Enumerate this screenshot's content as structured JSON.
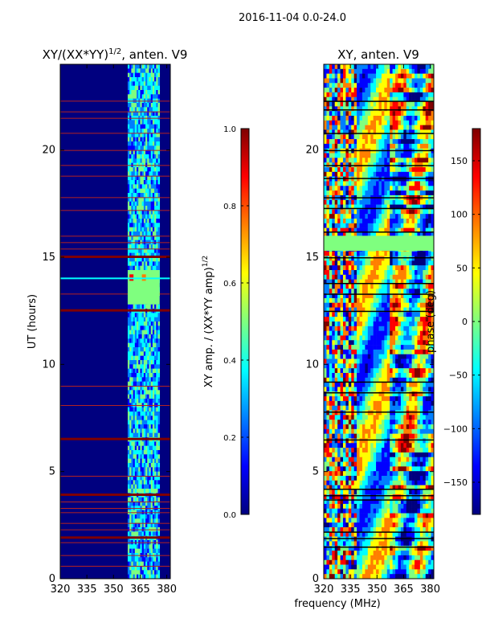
{
  "suptitle": "2016-11-04 0.0-24.0",
  "common_xlabel": "frequency (MHz)",
  "colors": {
    "jet": [
      "#00007f",
      "#0000ff",
      "#007fff",
      "#00ffff",
      "#7fff7f",
      "#ffff00",
      "#ff7f00",
      "#ff0000",
      "#7f0000"
    ],
    "frame": "#000000"
  },
  "chart_data": [
    {
      "type": "heatmap",
      "title_prefix": "XY/(XX*YY)",
      "title_sup": "1/2",
      "title_suffix": ", anten. V9",
      "xlabel": "",
      "ylabel": "UT (hours)",
      "xlim": [
        320,
        382
      ],
      "ylim": [
        0,
        24
      ],
      "xticks": [
        320,
        335,
        350,
        365,
        380
      ],
      "yticks": [
        0,
        5,
        10,
        15,
        20
      ],
      "colorbar": {
        "label": "XY amp. / (XX*YY amp)",
        "label_sup": "1/2",
        "range": [
          0.0,
          1.0
        ],
        "ticks": [
          "0.0",
          "0.2",
          "0.4",
          "0.6",
          "0.8",
          "1.0"
        ],
        "tick_values": [
          0,
          0.2,
          0.4,
          0.6,
          0.8,
          1.0
        ]
      },
      "colormap": "jet",
      "description_hours_saturated": [
        1.9,
        3.9,
        6.5,
        12.5,
        15.0
      ],
      "bright_band_mhz": [
        358,
        376
      ]
    },
    {
      "type": "heatmap",
      "title": "XY, anten. V9",
      "xlabel": "frequency (MHz)",
      "ylabel": "",
      "xlim": [
        320,
        382
      ],
      "ylim": [
        0,
        24
      ],
      "xticks": [
        320,
        335,
        350,
        365,
        380
      ],
      "yticks": [
        0,
        5,
        10,
        15,
        20
      ],
      "colorbar": {
        "label": "phase (deg)",
        "range": [
          -180,
          180
        ],
        "ticks": [
          "150",
          "100",
          "50",
          "0",
          "−50",
          "−100",
          "−150"
        ],
        "tick_values": [
          150,
          100,
          50,
          0,
          -50,
          -100,
          -150
        ]
      },
      "colormap": "jet"
    }
  ]
}
